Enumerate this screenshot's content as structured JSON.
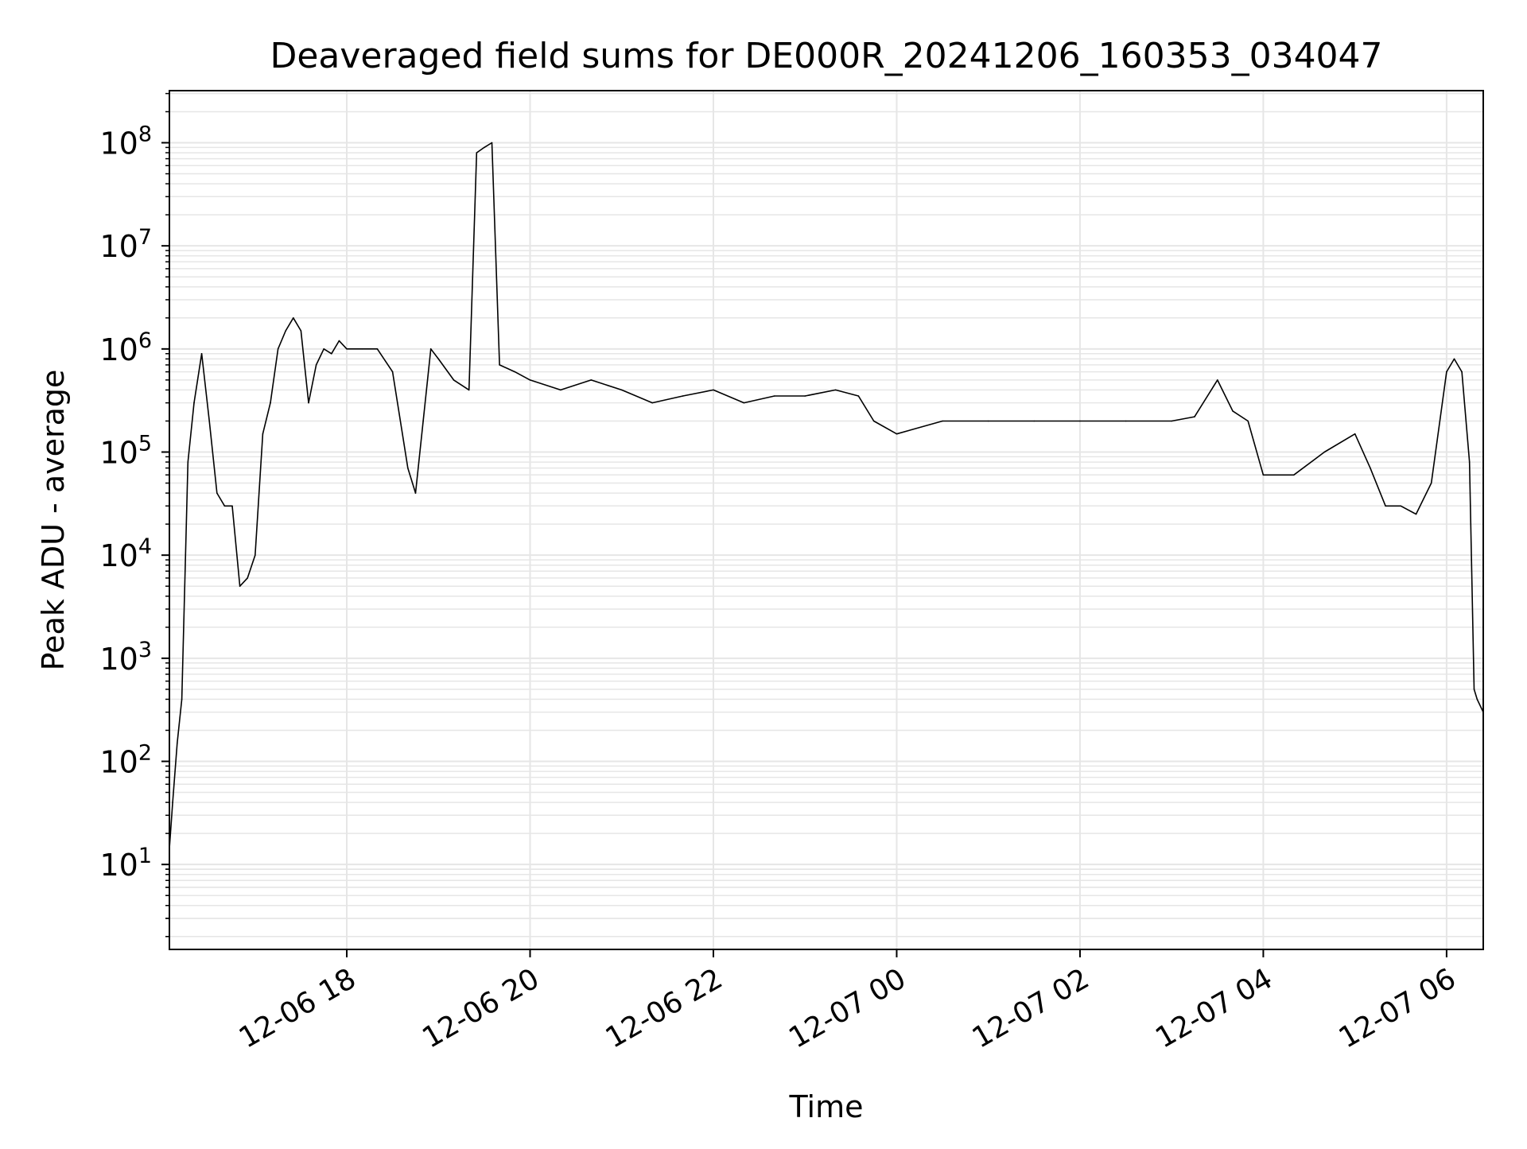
{
  "chart_data": {
    "type": "line",
    "title": "Deaveraged field sums for DE000R_20241206_160353_034047",
    "xlabel": "Time",
    "ylabel": "Peak ADU - average",
    "yscale": "log",
    "ylim": [
      1.5,
      320000000
    ],
    "xlim": [
      "2024-12-06 16:03:53",
      "2024-12-07 06:24:00"
    ],
    "xticks": [
      "12-06 18",
      "12-06 20",
      "12-06 22",
      "12-07 00",
      "12-07 02",
      "12-07 04",
      "12-07 06"
    ],
    "grid": true,
    "line_color": "#000000",
    "grid_color": "#e6e6e6",
    "series": [
      {
        "x": [
          "2024-12-06 16:04",
          "2024-12-06 16:06",
          "2024-12-06 16:09",
          "2024-12-06 16:12",
          "2024-12-06 16:16",
          "2024-12-06 16:20",
          "2024-12-06 16:25",
          "2024-12-06 16:30",
          "2024-12-06 16:35",
          "2024-12-06 16:40",
          "2024-12-06 16:45",
          "2024-12-06 16:50",
          "2024-12-06 16:55",
          "2024-12-06 17:00",
          "2024-12-06 17:05",
          "2024-12-06 17:10",
          "2024-12-06 17:15",
          "2024-12-06 17:20",
          "2024-12-06 17:25",
          "2024-12-06 17:30",
          "2024-12-06 17:35",
          "2024-12-06 17:40",
          "2024-12-06 17:45",
          "2024-12-06 17:50",
          "2024-12-06 17:55",
          "2024-12-06 18:00",
          "2024-12-06 18:10",
          "2024-12-06 18:20",
          "2024-12-06 18:30",
          "2024-12-06 18:40",
          "2024-12-06 18:45",
          "2024-12-06 18:50",
          "2024-12-06 18:55",
          "2024-12-06 19:00",
          "2024-12-06 19:10",
          "2024-12-06 19:20",
          "2024-12-06 19:25",
          "2024-12-06 19:30",
          "2024-12-06 19:35",
          "2024-12-06 19:40",
          "2024-12-06 19:50",
          "2024-12-06 20:00",
          "2024-12-06 20:20",
          "2024-12-06 20:40",
          "2024-12-06 21:00",
          "2024-12-06 21:20",
          "2024-12-06 21:40",
          "2024-12-06 22:00",
          "2024-12-06 22:20",
          "2024-12-06 22:40",
          "2024-12-06 23:00",
          "2024-12-06 23:20",
          "2024-12-06 23:35",
          "2024-12-06 23:45",
          "2024-12-07 00:00",
          "2024-12-07 00:30",
          "2024-12-07 01:00",
          "2024-12-07 01:30",
          "2024-12-07 02:00",
          "2024-12-07 02:30",
          "2024-12-07 03:00",
          "2024-12-07 03:15",
          "2024-12-07 03:30",
          "2024-12-07 03:40",
          "2024-12-07 03:50",
          "2024-12-07 04:00",
          "2024-12-07 04:20",
          "2024-12-07 04:40",
          "2024-12-07 05:00",
          "2024-12-07 05:10",
          "2024-12-07 05:20",
          "2024-12-07 05:30",
          "2024-12-07 05:40",
          "2024-12-07 05:50",
          "2024-12-07 06:00",
          "2024-12-07 06:05",
          "2024-12-07 06:10",
          "2024-12-07 06:15",
          "2024-12-07 06:18",
          "2024-12-07 06:20",
          "2024-12-07 06:24"
        ],
        "values": [
          15,
          40,
          150,
          400,
          80000,
          300000,
          900000,
          200000,
          40000,
          30000,
          30000,
          5000,
          6000,
          10000,
          150000,
          300000,
          1000000,
          1500000,
          2000000,
          1500000,
          300000,
          700000,
          1000000,
          900000,
          1200000,
          1000000,
          1000000,
          1000000,
          600000,
          70000,
          40000,
          200000,
          1000000,
          800000,
          500000,
          400000,
          80000000,
          90000000,
          100000000,
          700000,
          600000,
          500000,
          400000,
          500000,
          400000,
          300000,
          350000,
          400000,
          300000,
          350000,
          350000,
          400000,
          350000,
          200000,
          150000,
          200000,
          200000,
          200000,
          200000,
          200000,
          200000,
          220000,
          500000,
          250000,
          200000,
          60000,
          60000,
          100000,
          150000,
          70000,
          30000,
          30000,
          25000,
          50000,
          600000,
          800000,
          600000,
          80000,
          500,
          400,
          300
        ]
      }
    ]
  }
}
